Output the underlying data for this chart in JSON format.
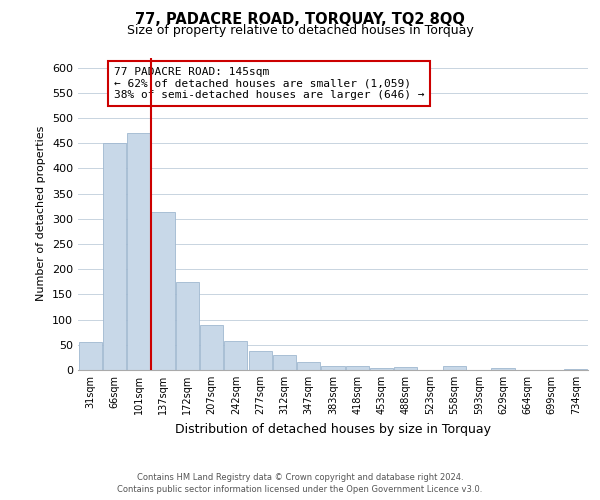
{
  "title": "77, PADACRE ROAD, TORQUAY, TQ2 8QQ",
  "subtitle": "Size of property relative to detached houses in Torquay",
  "xlabel": "Distribution of detached houses by size in Torquay",
  "ylabel": "Number of detached properties",
  "bin_labels": [
    "31sqm",
    "66sqm",
    "101sqm",
    "137sqm",
    "172sqm",
    "207sqm",
    "242sqm",
    "277sqm",
    "312sqm",
    "347sqm",
    "383sqm",
    "418sqm",
    "453sqm",
    "488sqm",
    "523sqm",
    "558sqm",
    "593sqm",
    "629sqm",
    "664sqm",
    "699sqm",
    "734sqm"
  ],
  "bar_values": [
    55,
    450,
    470,
    313,
    175,
    90,
    57,
    38,
    30,
    15,
    7,
    8,
    3,
    5,
    0,
    8,
    0,
    3,
    0,
    0,
    2
  ],
  "bar_color": "#c8d8e8",
  "bar_edgecolor": "#a0b8d0",
  "vline_index": 3,
  "annotation_title": "77 PADACRE ROAD: 145sqm",
  "annotation_line1": "← 62% of detached houses are smaller (1,059)",
  "annotation_line2": "38% of semi-detached houses are larger (646) →",
  "annotation_box_edgecolor": "#cc0000",
  "annotation_box_facecolor": "#ffffff",
  "vline_color": "#cc0000",
  "ylim": [
    0,
    620
  ],
  "yticks": [
    0,
    50,
    100,
    150,
    200,
    250,
    300,
    350,
    400,
    450,
    500,
    550,
    600
  ],
  "footer1": "Contains HM Land Registry data © Crown copyright and database right 2024.",
  "footer2": "Contains public sector information licensed under the Open Government Licence v3.0.",
  "title_fontsize": 10.5,
  "subtitle_fontsize": 9,
  "background_color": "#ffffff",
  "grid_color": "#c8d4e0"
}
